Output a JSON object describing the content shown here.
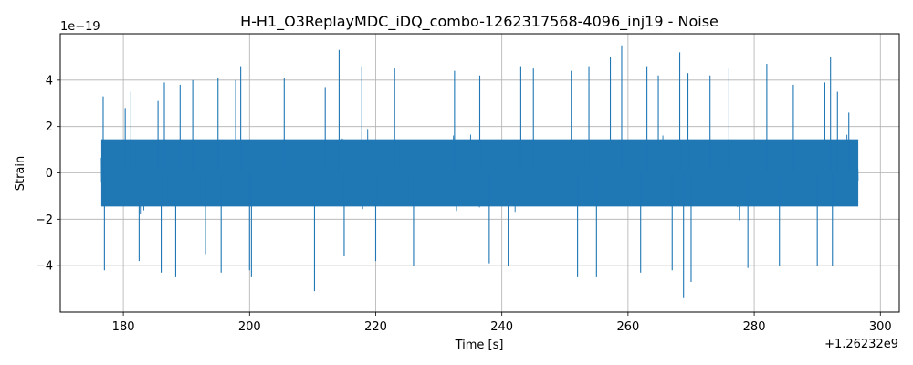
{
  "chart_data": {
    "type": "line",
    "title": "H-H1_O3ReplayMDC_iDQ_combo-1262317568-4096_inj19 - Noise",
    "xlabel": "Time [s]",
    "ylabel": "Strain",
    "x_offset_label": "+1.26232e9",
    "y_scale_label": "1e−19",
    "xlim": [
      170,
      303
    ],
    "ylim": [
      -6,
      6
    ],
    "xticks": [
      180,
      200,
      220,
      240,
      260,
      280,
      300
    ],
    "xtick_labels": [
      "180",
      "200",
      "220",
      "240",
      "260",
      "280",
      "300"
    ],
    "yticks": [
      -4,
      -2,
      0,
      2,
      4
    ],
    "ytick_labels": [
      "−4",
      "−2",
      "0",
      "2",
      "4"
    ],
    "grid": true,
    "legend": "none",
    "series_color": "#1f77b4",
    "series": [
      {
        "x_range": [
          176.5,
          296.5
        ],
        "y_units_note": "1e-19",
        "envelope_peaks": [
          {
            "x": 176.8,
            "y": 3.3
          },
          {
            "x": 177.0,
            "y": -4.2
          },
          {
            "x": 180.3,
            "y": 2.8
          },
          {
            "x": 181.2,
            "y": 3.5
          },
          {
            "x": 182.5,
            "y": -3.8
          },
          {
            "x": 185.5,
            "y": 3.1
          },
          {
            "x": 186.0,
            "y": -4.3
          },
          {
            "x": 186.5,
            "y": 3.9
          },
          {
            "x": 188.3,
            "y": -4.5
          },
          {
            "x": 189.0,
            "y": 3.8
          },
          {
            "x": 191.0,
            "y": 4.0
          },
          {
            "x": 193.0,
            "y": -3.5
          },
          {
            "x": 195.0,
            "y": 4.1
          },
          {
            "x": 195.5,
            "y": -4.3
          },
          {
            "x": 197.8,
            "y": 4.0
          },
          {
            "x": 198.6,
            "y": 4.6
          },
          {
            "x": 200.0,
            "y": -4.2
          },
          {
            "x": 200.3,
            "y": -4.5
          },
          {
            "x": 205.5,
            "y": 4.1
          },
          {
            "x": 210.3,
            "y": -5.1
          },
          {
            "x": 212.0,
            "y": 3.7
          },
          {
            "x": 214.2,
            "y": 5.3
          },
          {
            "x": 215.0,
            "y": -3.6
          },
          {
            "x": 217.8,
            "y": 4.6
          },
          {
            "x": 220.0,
            "y": -3.8
          },
          {
            "x": 223.0,
            "y": 4.5
          },
          {
            "x": 226.0,
            "y": -4.0
          },
          {
            "x": 232.5,
            "y": 4.4
          },
          {
            "x": 236.5,
            "y": 4.2
          },
          {
            "x": 238.0,
            "y": -3.9
          },
          {
            "x": 241.0,
            "y": -4.0
          },
          {
            "x": 243.0,
            "y": 4.6
          },
          {
            "x": 245.0,
            "y": 4.5
          },
          {
            "x": 251.0,
            "y": 4.4
          },
          {
            "x": 252.0,
            "y": -4.5
          },
          {
            "x": 253.8,
            "y": 4.6
          },
          {
            "x": 255.0,
            "y": -4.5
          },
          {
            "x": 257.2,
            "y": 5.0
          },
          {
            "x": 259.0,
            "y": 5.5
          },
          {
            "x": 262.0,
            "y": -4.3
          },
          {
            "x": 263.0,
            "y": 4.6
          },
          {
            "x": 264.8,
            "y": 4.2
          },
          {
            "x": 267.0,
            "y": -4.2
          },
          {
            "x": 268.2,
            "y": 5.2
          },
          {
            "x": 268.8,
            "y": -5.4
          },
          {
            "x": 269.5,
            "y": 4.3
          },
          {
            "x": 270.0,
            "y": -4.7
          },
          {
            "x": 273.0,
            "y": 4.2
          },
          {
            "x": 276.0,
            "y": 4.5
          },
          {
            "x": 279.0,
            "y": -4.1
          },
          {
            "x": 282.0,
            "y": 4.7
          },
          {
            "x": 284.0,
            "y": -4.0
          },
          {
            "x": 286.2,
            "y": 3.8
          },
          {
            "x": 290.0,
            "y": -4.0
          },
          {
            "x": 291.2,
            "y": 3.9
          },
          {
            "x": 292.1,
            "y": 5.0
          },
          {
            "x": 292.4,
            "y": -4.0
          },
          {
            "x": 293.2,
            "y": 3.5
          },
          {
            "x": 295.0,
            "y": 2.6
          }
        ],
        "typical_amplitude": 1.5,
        "burst_amplitude": 3.0
      }
    ]
  }
}
